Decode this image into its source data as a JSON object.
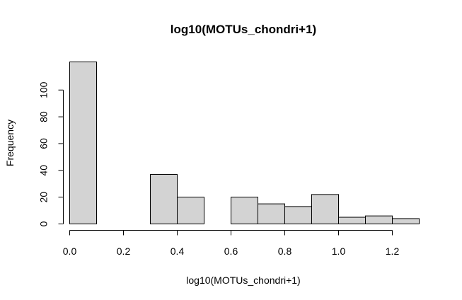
{
  "chart_data": {
    "type": "bar",
    "title": "log10(MOTUs_chondri+1)",
    "xlabel": "log10(MOTUs_chondri+1)",
    "ylabel": "Frequency",
    "bins": [
      {
        "start": 0.0,
        "end": 0.1,
        "count": 121
      },
      {
        "start": 0.1,
        "end": 0.2,
        "count": 0
      },
      {
        "start": 0.2,
        "end": 0.3,
        "count": 0
      },
      {
        "start": 0.3,
        "end": 0.4,
        "count": 37
      },
      {
        "start": 0.4,
        "end": 0.5,
        "count": 20
      },
      {
        "start": 0.5,
        "end": 0.6,
        "count": 0
      },
      {
        "start": 0.6,
        "end": 0.7,
        "count": 20
      },
      {
        "start": 0.7,
        "end": 0.8,
        "count": 15
      },
      {
        "start": 0.8,
        "end": 0.9,
        "count": 13
      },
      {
        "start": 0.9,
        "end": 1.0,
        "count": 22
      },
      {
        "start": 1.0,
        "end": 1.1,
        "count": 5
      },
      {
        "start": 1.1,
        "end": 1.2,
        "count": 6
      },
      {
        "start": 1.2,
        "end": 1.3,
        "count": 4
      }
    ],
    "xticks": [
      "0.0",
      "0.2",
      "0.4",
      "0.6",
      "0.8",
      "1.0",
      "1.2"
    ],
    "yticks": [
      "0",
      "20",
      "40",
      "60",
      "80",
      "100"
    ],
    "xlim": [
      0.0,
      1.3
    ],
    "ylim": [
      0,
      121
    ],
    "grid": false,
    "colors": {
      "bar_fill": "#d3d3d3",
      "bar_stroke": "#000000"
    }
  }
}
